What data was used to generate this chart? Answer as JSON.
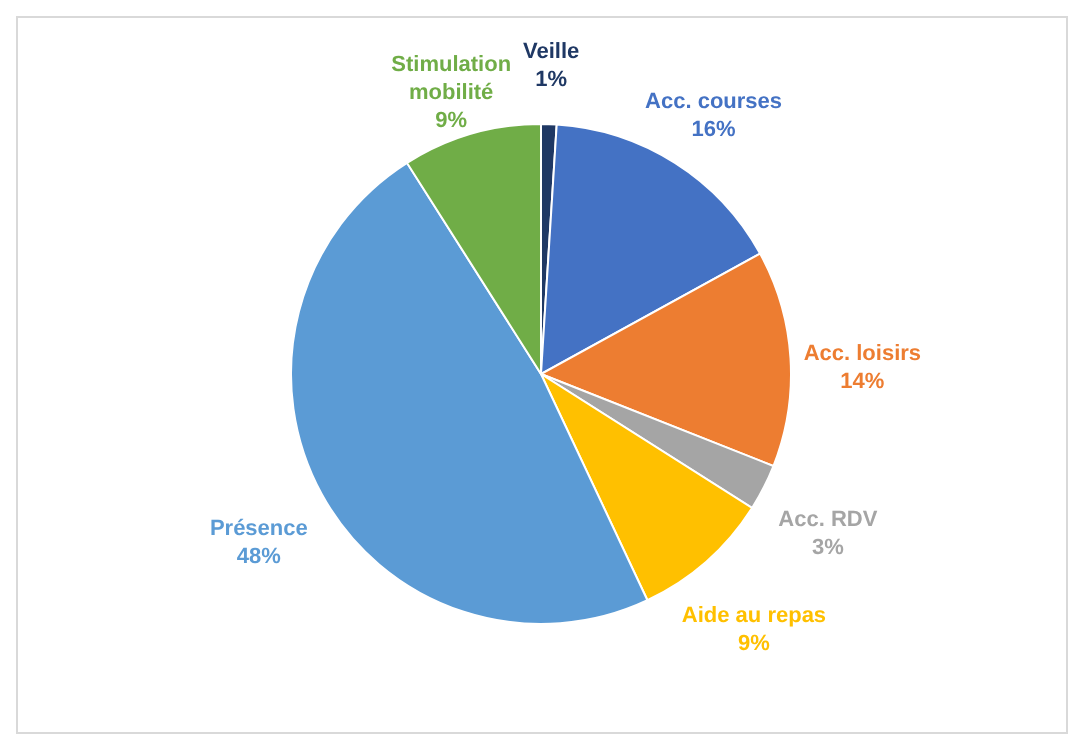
{
  "chart_data": {
    "type": "pie",
    "categories": [
      "Veille",
      "Acc. courses",
      "Acc. loisirs",
      "Acc. RDV",
      "Aide au repas",
      "Présence",
      "Stimulation mobilité"
    ],
    "values": [
      1,
      16,
      14,
      3,
      9,
      48,
      9
    ],
    "colors": [
      "#1f3864",
      "#4472c4",
      "#ed7d31",
      "#a5a5a5",
      "#ffc000",
      "#5b9bd5",
      "#70ad47"
    ],
    "value_labels": [
      "1%",
      "16%",
      "14%",
      "3%",
      "9%",
      "48%",
      "9%"
    ]
  }
}
